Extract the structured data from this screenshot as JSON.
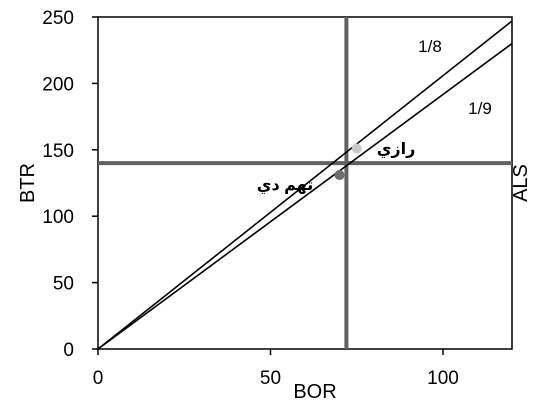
{
  "chart_data": {
    "type": "scatter",
    "xlabel": "BOR",
    "ylabel": "BTR",
    "y2label": "ALS",
    "xlim": [
      0,
      120
    ],
    "ylim": [
      0,
      250
    ],
    "x_ticks": [
      0,
      50,
      100
    ],
    "y_ticks": [
      0,
      50,
      100,
      150,
      200,
      250
    ],
    "grid": false,
    "reference_lines": {
      "vertical_x": 72,
      "horizontal_y": 140
    },
    "ratio_lines": [
      {
        "label": "1/8",
        "x": [
          0,
          120
        ],
        "y": [
          0,
          247
        ]
      },
      {
        "label": "1/9",
        "x": [
          0,
          120
        ],
        "y": [
          0,
          230
        ]
      }
    ],
    "points": [
      {
        "label": "رازي",
        "x": 75,
        "y": 151
      },
      {
        "label": "تهم دي",
        "x": 70,
        "y": 131
      }
    ],
    "colors": {
      "axes": "#000000",
      "reference": "#616161",
      "point_razi": "#c8c8c8",
      "point_other": "#6e6e6e"
    }
  }
}
